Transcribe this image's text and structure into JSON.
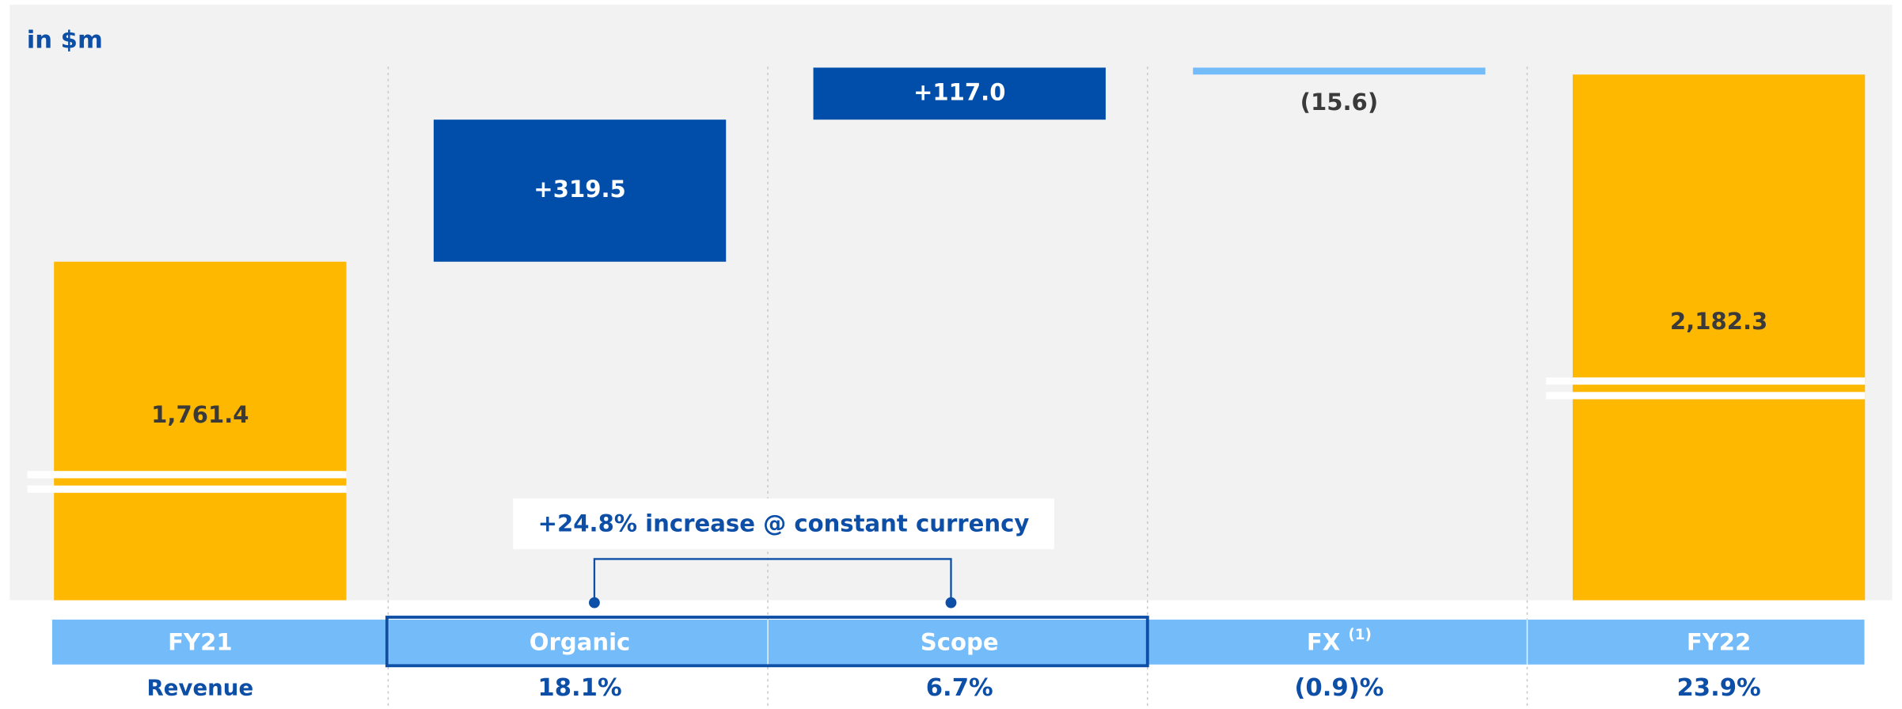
{
  "chart_data": {
    "type": "waterfall",
    "unit_label": "in $m",
    "categories": [
      "FY21",
      "Organic",
      "Scope",
      "FX",
      "FY22"
    ],
    "category_notes": [
      null,
      null,
      null,
      "(1)",
      null
    ],
    "measure": [
      "total",
      "relative",
      "relative",
      "relative",
      "total"
    ],
    "values": [
      1761.4,
      319.5,
      117.0,
      -15.6,
      2182.3
    ],
    "value_labels": [
      "1,761.4",
      "+319.5",
      "+117.0",
      "(15.6)",
      "2,182.3"
    ],
    "colors": {
      "total": "#FFB800",
      "increase": "#004DAA",
      "decrease": "#74BBF9"
    },
    "ylim": [
      1000,
      2200
    ],
    "axis_break": true,
    "annotation": "+24.8% increase @ constant currency",
    "growth": {
      "label": "Revenue",
      "values": [
        18.1,
        6.7,
        -0.9,
        23.9
      ],
      "value_labels": [
        "18.1%",
        "6.7%",
        "(0.9)%",
        "23.9%"
      ]
    }
  }
}
